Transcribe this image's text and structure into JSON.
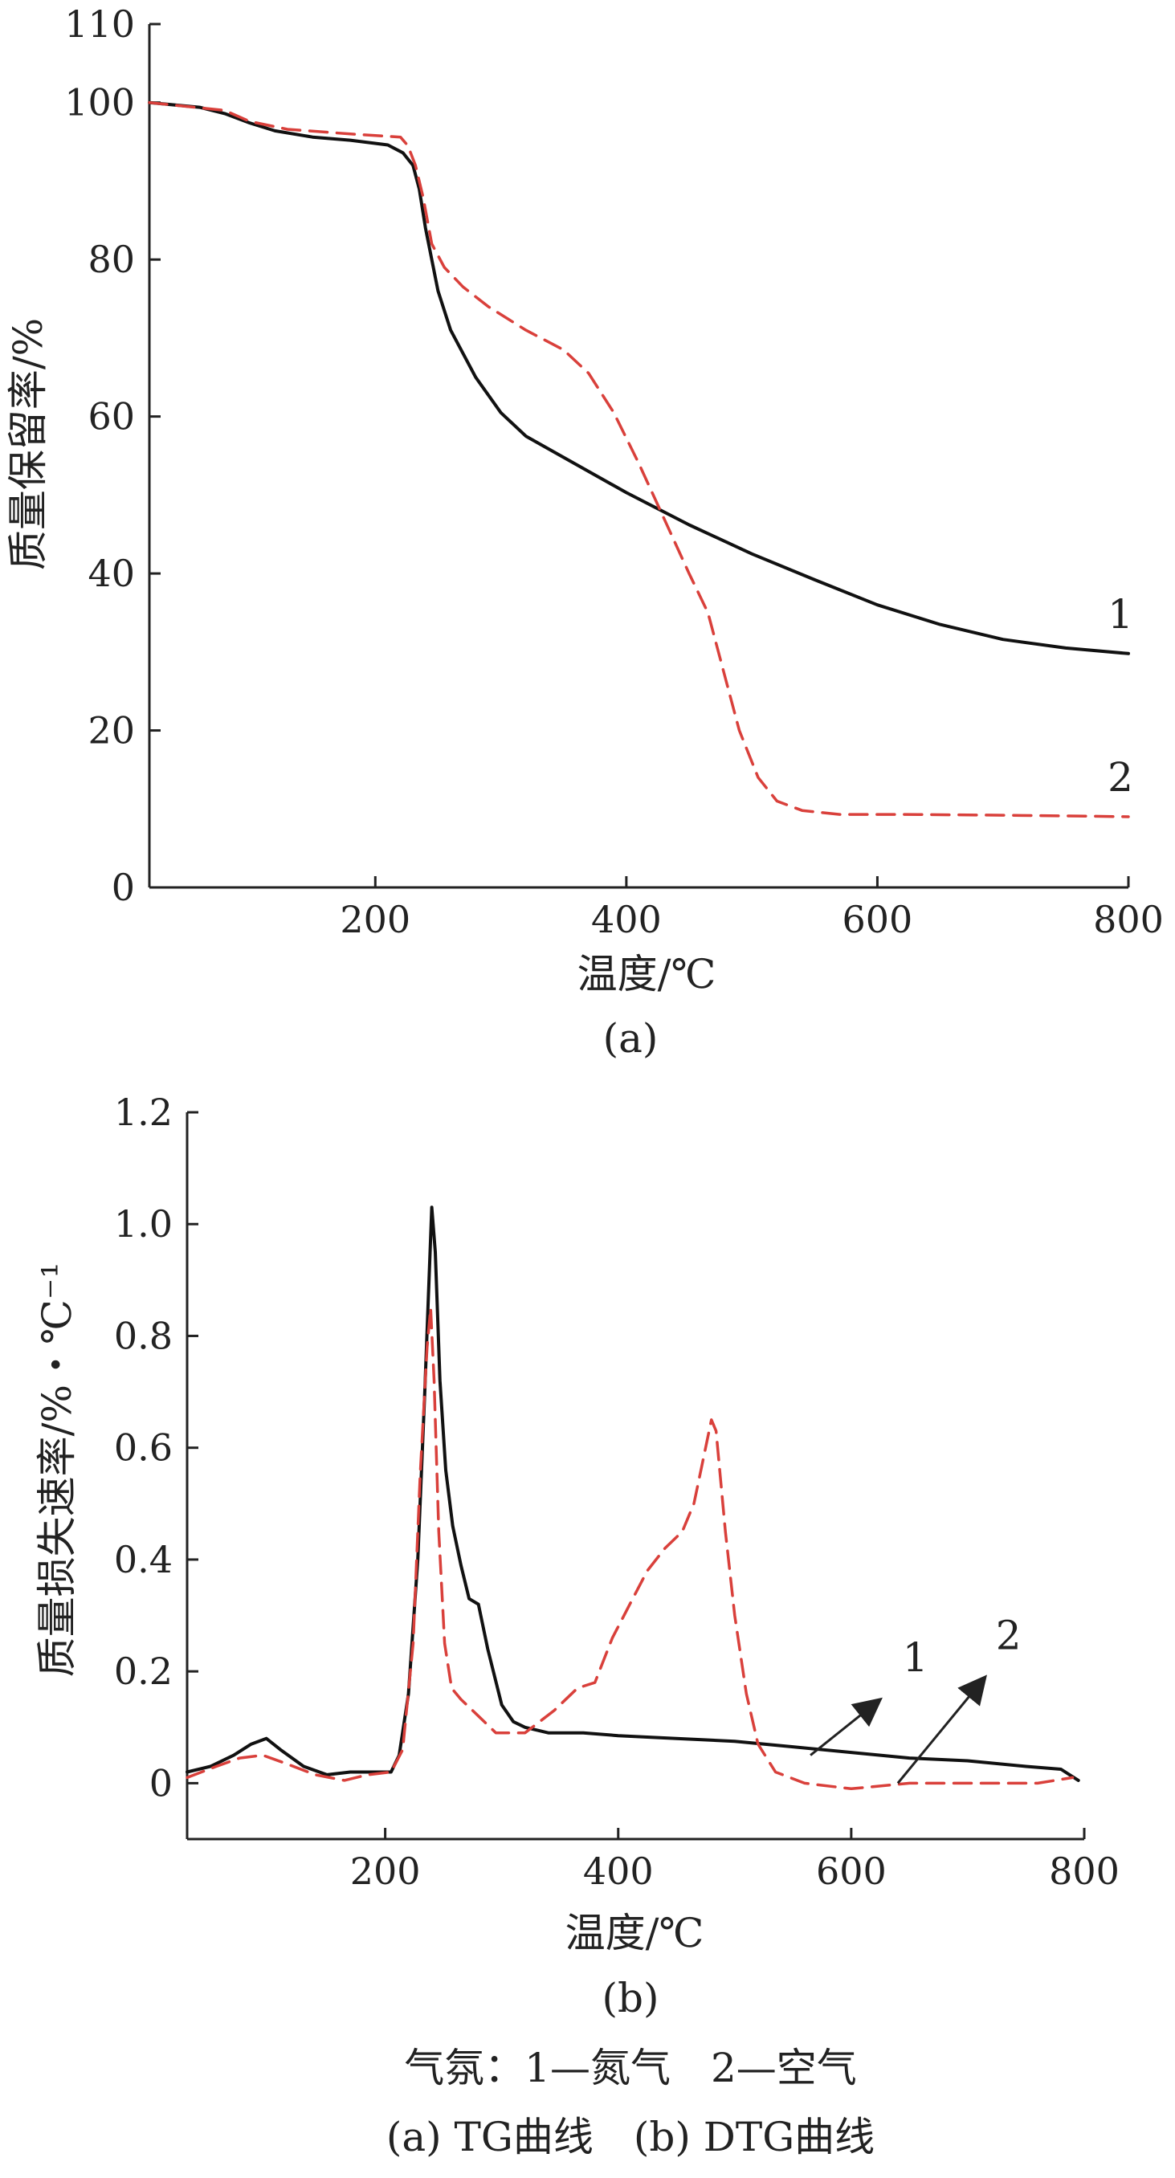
{
  "colors": {
    "series1": "#111111",
    "series2": "#d9403b",
    "axis": "#222222"
  },
  "chart_data": [
    {
      "type": "line",
      "xlabel": "温度/℃",
      "ylabel": "质量保留率/%",
      "panel_label": "(a)",
      "xlim": [
        20,
        800
      ],
      "ylim": [
        0,
        110
      ],
      "xticks": [
        "200",
        "400",
        "600",
        "800"
      ],
      "yticks": [
        "0",
        "20",
        "40",
        "60",
        "80",
        "100",
        "110"
      ],
      "series": [
        {
          "name": "1",
          "style": "solid",
          "points": [
            [
              20,
              100
            ],
            [
              60,
              99.4
            ],
            [
              80,
              98.6
            ],
            [
              100,
              97.4
            ],
            [
              120,
              96.4
            ],
            [
              150,
              95.6
            ],
            [
              180,
              95.2
            ],
            [
              210,
              94.6
            ],
            [
              222,
              93.6
            ],
            [
              230,
              92
            ],
            [
              235,
              89
            ],
            [
              240,
              84
            ],
            [
              250,
              76
            ],
            [
              260,
              71
            ],
            [
              280,
              65
            ],
            [
              300,
              60.5
            ],
            [
              320,
              57.5
            ],
            [
              350,
              54.8
            ],
            [
              400,
              50.3
            ],
            [
              450,
              46.2
            ],
            [
              500,
              42.5
            ],
            [
              550,
              39.2
            ],
            [
              600,
              36
            ],
            [
              650,
              33.5
            ],
            [
              700,
              31.6
            ],
            [
              750,
              30.5
            ],
            [
              800,
              29.8
            ]
          ]
        },
        {
          "name": "2",
          "style": "dashed",
          "points": [
            [
              20,
              100
            ],
            [
              80,
              99
            ],
            [
              100,
              97.6
            ],
            [
              130,
              96.6
            ],
            [
              180,
              96
            ],
            [
              220,
              95.6
            ],
            [
              226,
              94.5
            ],
            [
              232,
              92
            ],
            [
              238,
              88
            ],
            [
              245,
              82
            ],
            [
              255,
              79
            ],
            [
              270,
              76.5
            ],
            [
              290,
              74
            ],
            [
              320,
              71
            ],
            [
              350,
              68.5
            ],
            [
              370,
              65.5
            ],
            [
              390,
              60.5
            ],
            [
              410,
              54
            ],
            [
              430,
              47
            ],
            [
              450,
              40
            ],
            [
              465,
              35
            ],
            [
              480,
              26
            ],
            [
              490,
              20
            ],
            [
              505,
              14
            ],
            [
              520,
              11
            ],
            [
              540,
              9.8
            ],
            [
              570,
              9.3
            ],
            [
              620,
              9.3
            ],
            [
              700,
              9.2
            ],
            [
              760,
              9.1
            ],
            [
              800,
              9
            ]
          ]
        }
      ]
    },
    {
      "type": "line",
      "xlabel": "温度/℃",
      "ylabel": "质量损失速率/%・℃⁻¹",
      "panel_label": "(b)",
      "xlim": [
        30,
        800
      ],
      "ylim": [
        -0.1,
        1.2
      ],
      "xticks": [
        "200",
        "400",
        "600",
        "800"
      ],
      "yticks": [
        "0",
        "0.2",
        "0.4",
        "0.6",
        "0.8",
        "1.0",
        "1.2"
      ],
      "series": [
        {
          "name": "1",
          "style": "solid",
          "points": [
            [
              30,
              0.02
            ],
            [
              50,
              0.03
            ],
            [
              70,
              0.05
            ],
            [
              85,
              0.07
            ],
            [
              98,
              0.08
            ],
            [
              110,
              0.06
            ],
            [
              130,
              0.03
            ],
            [
              150,
              0.015
            ],
            [
              170,
              0.02
            ],
            [
              190,
              0.02
            ],
            [
              205,
              0.02
            ],
            [
              212,
              0.05
            ],
            [
              220,
              0.16
            ],
            [
              228,
              0.4
            ],
            [
              234,
              0.7
            ],
            [
              238,
              0.92
            ],
            [
              240,
              1.03
            ],
            [
              243,
              0.95
            ],
            [
              247,
              0.72
            ],
            [
              252,
              0.56
            ],
            [
              258,
              0.46
            ],
            [
              265,
              0.39
            ],
            [
              272,
              0.33
            ],
            [
              280,
              0.32
            ],
            [
              288,
              0.24
            ],
            [
              300,
              0.14
            ],
            [
              310,
              0.11
            ],
            [
              320,
              0.1
            ],
            [
              340,
              0.09
            ],
            [
              370,
              0.09
            ],
            [
              400,
              0.085
            ],
            [
              450,
              0.08
            ],
            [
              500,
              0.075
            ],
            [
              550,
              0.065
            ],
            [
              600,
              0.055
            ],
            [
              650,
              0.045
            ],
            [
              700,
              0.04
            ],
            [
              750,
              0.03
            ],
            [
              780,
              0.025
            ],
            [
              795,
              0.005
            ]
          ]
        },
        {
          "name": "2",
          "style": "dashed",
          "points": [
            [
              30,
              0.01
            ],
            [
              55,
              0.03
            ],
            [
              75,
              0.045
            ],
            [
              95,
              0.05
            ],
            [
              115,
              0.035
            ],
            [
              140,
              0.015
            ],
            [
              165,
              0.005
            ],
            [
              185,
              0.015
            ],
            [
              205,
              0.02
            ],
            [
              215,
              0.06
            ],
            [
              224,
              0.25
            ],
            [
              230,
              0.55
            ],
            [
              236,
              0.78
            ],
            [
              239,
              0.85
            ],
            [
              242,
              0.72
            ],
            [
              246,
              0.45
            ],
            [
              251,
              0.25
            ],
            [
              257,
              0.17
            ],
            [
              265,
              0.15
            ],
            [
              280,
              0.12
            ],
            [
              295,
              0.09
            ],
            [
              320,
              0.09
            ],
            [
              345,
              0.13
            ],
            [
              365,
              0.17
            ],
            [
              380,
              0.18
            ],
            [
              395,
              0.26
            ],
            [
              410,
              0.32
            ],
            [
              425,
              0.38
            ],
            [
              440,
              0.42
            ],
            [
              455,
              0.45
            ],
            [
              465,
              0.5
            ],
            [
              472,
              0.57
            ],
            [
              480,
              0.65
            ],
            [
              484,
              0.63
            ],
            [
              492,
              0.45
            ],
            [
              500,
              0.3
            ],
            [
              510,
              0.16
            ],
            [
              520,
              0.07
            ],
            [
              535,
              0.02
            ],
            [
              560,
              0.0
            ],
            [
              600,
              -0.01
            ],
            [
              650,
              0.0
            ],
            [
              700,
              0.0
            ],
            [
              760,
              0.0
            ],
            [
              790,
              0.01
            ]
          ]
        }
      ],
      "annotations": [
        {
          "text": "1",
          "arrow_from": [
            565,
            0.05
          ],
          "arrow_to": [
            625,
            0.15
          ],
          "text_at": [
            655,
            0.2
          ]
        },
        {
          "text": "2",
          "arrow_from": [
            640,
            0.0
          ],
          "arrow_to": [
            715,
            0.19
          ],
          "text_at": [
            735,
            0.24
          ]
        }
      ]
    }
  ],
  "captions": {
    "line1": "气氛：1—氮气　2—空气",
    "line2": "(a) TG曲线　(b) DTG曲线"
  }
}
